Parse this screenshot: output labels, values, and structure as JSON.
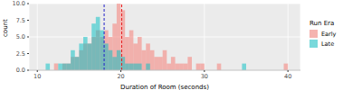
{
  "chart_data": {
    "type": "histogram",
    "x_label": "Duration of Room (seconds)",
    "y_label": "count",
    "legend_title": "Run Era",
    "legend": "right",
    "grid": true,
    "bins": [
      10,
      10.5,
      11,
      11.5,
      12,
      12.5,
      13,
      13.5,
      14,
      14.5,
      15,
      15.5,
      16,
      16.5,
      17,
      17.5,
      18,
      18.5,
      19,
      19.5,
      20,
      20.5,
      21,
      21.5,
      22,
      22.5,
      23,
      23.5,
      24,
      24.5,
      25,
      25.5,
      26,
      26.5,
      27,
      27.5,
      28,
      28.5,
      29,
      29.5,
      30,
      30.5,
      31,
      31.5,
      32,
      32.5,
      33,
      33.5,
      34,
      34.5,
      35,
      35.5,
      36,
      36.5,
      37,
      37.5,
      38,
      38.5,
      39,
      39.5,
      40,
      40.5
    ],
    "series": [
      {
        "name": "Early",
        "color": "#f8766d",
        "mean": 20.1,
        "line_style": "dashed",
        "values": [
          0,
          0,
          0,
          0,
          1,
          0,
          1,
          1,
          2,
          2,
          3,
          4,
          4,
          5,
          6,
          5,
          6,
          5,
          7,
          10,
          9,
          5,
          6,
          4,
          5,
          3,
          4,
          3,
          2,
          2,
          3,
          1,
          2,
          1,
          1,
          1,
          2,
          0,
          1,
          1,
          0,
          0,
          0,
          1,
          0,
          0,
          0,
          0,
          0,
          0,
          0,
          0,
          0,
          0,
          0,
          0,
          0,
          0,
          0,
          1,
          0
        ]
      },
      {
        "name": "Late",
        "color": "#00bfc4",
        "mean": 18.0,
        "line_style": "dashed",
        "values": [
          0,
          0,
          1,
          0,
          0,
          1,
          1,
          1,
          3,
          2,
          4,
          5,
          4,
          7,
          8,
          6,
          4,
          3,
          2,
          3,
          2,
          1,
          1,
          1,
          1,
          0,
          1,
          0,
          0,
          0,
          0,
          0,
          0,
          0,
          0,
          0,
          0,
          0,
          0,
          0,
          0,
          0,
          0,
          0,
          0,
          0,
          0,
          0,
          0,
          1,
          0,
          0,
          0,
          0,
          0,
          0,
          0,
          0,
          0,
          0,
          0
        ]
      }
    ],
    "xlim": [
      9,
      41.5
    ],
    "xticks": [
      10,
      20,
      30,
      40
    ],
    "ylim": [
      0,
      10
    ],
    "yticks": [
      {
        "value": 0,
        "label": "0.0"
      },
      2.5,
      {
        "value": 5,
        "label": "5.0"
      },
      7.5,
      {
        "value": 10,
        "label": "10.0"
      }
    ]
  }
}
